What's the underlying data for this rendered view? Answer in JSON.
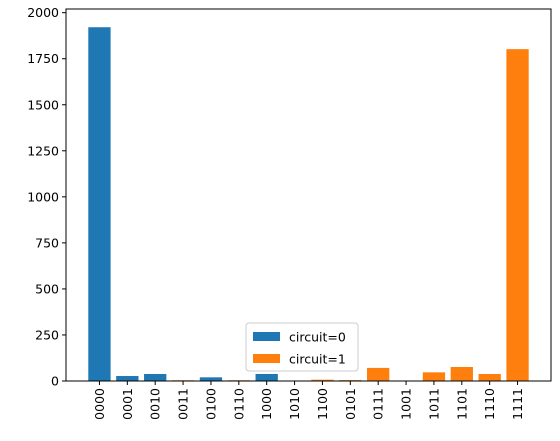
{
  "chart_data": {
    "type": "bar",
    "title": "",
    "xlabel": "",
    "ylabel": "",
    "categories": [
      "0000",
      "0001",
      "0010",
      "0011",
      "0100",
      "0110",
      "1000",
      "1010",
      "1100",
      "0101",
      "0111",
      "1001",
      "1011",
      "1101",
      "1110",
      "1111"
    ],
    "ylim": [
      0,
      2020
    ],
    "yticks": [
      0,
      250,
      500,
      750,
      1000,
      1250,
      1500,
      1750,
      2000
    ],
    "x_tick_rotation": "vertical",
    "grid": false,
    "legend_position": "lower-center",
    "series": [
      {
        "name": "circuit=0",
        "color": "#1f77b4",
        "values": [
          1921,
          27,
          38,
          2,
          20,
          0,
          38,
          0,
          0,
          0,
          0,
          0,
          0,
          0,
          0,
          0
        ]
      },
      {
        "name": "circuit=1",
        "color": "#ff7f0e",
        "values": [
          0,
          0,
          0,
          4,
          0,
          4,
          0,
          1,
          7,
          5,
          71,
          1,
          47,
          76,
          38,
          1802
        ]
      }
    ]
  }
}
